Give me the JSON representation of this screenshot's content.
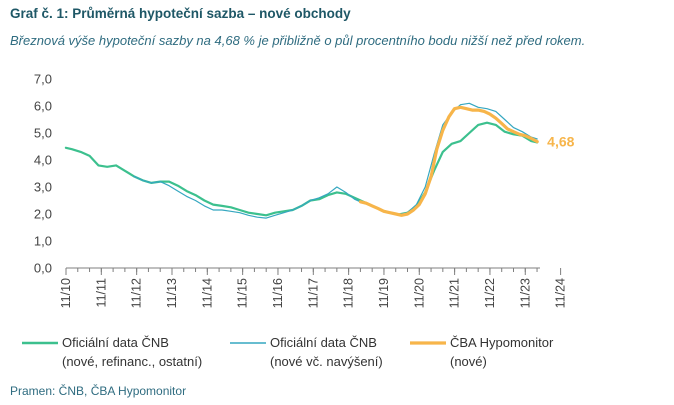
{
  "header": {
    "title": "Graf č. 1: Průměrná hypoteční sazba – nové obchody",
    "subtitle": "Březnová výše hypoteční sazby na 4,68 % je přibližně o půl procentního bodu nižší než před rokem."
  },
  "source": "Pramen: ČNB, ČBA Hypomonitor",
  "colors": {
    "cnb_refinanc": "#3cc08e",
    "cnb_navyseni": "#35a7c0",
    "cba": "#f7b54a",
    "axis": "#7f7f7f"
  },
  "chart_data": {
    "type": "line",
    "title": "Graf č. 1: Průměrná hypoteční sazba – nové obchody",
    "xlabel": "",
    "ylabel": "",
    "ylim": [
      0,
      7
    ],
    "xlim": [
      2010.833,
      2024.25
    ],
    "yticks": [
      "0,0",
      "1,0",
      "2,0",
      "3,0",
      "4,0",
      "5,0",
      "6,0",
      "7,0"
    ],
    "xticks": [
      "11/10",
      "11/11",
      "11/12",
      "11/13",
      "11/14",
      "11/15",
      "11/16",
      "11/17",
      "11/18",
      "11/19",
      "11/20",
      "11/21",
      "11/22",
      "11/23",
      "11/24"
    ],
    "grid": false,
    "legend": "bottom",
    "annotation": "4,68",
    "series": [
      {
        "name": "Oficiální data ČNB\n(nové, refinanc., ostatní)",
        "x": [
          2010.83,
          2011.0,
          2011.25,
          2011.5,
          2011.75,
          2012.0,
          2012.25,
          2012.5,
          2012.75,
          2013.0,
          2013.25,
          2013.5,
          2013.75,
          2014.0,
          2014.25,
          2014.5,
          2014.75,
          2015.0,
          2015.25,
          2015.5,
          2015.75,
          2016.0,
          2016.25,
          2016.5,
          2016.75,
          2017.0,
          2017.25,
          2017.5,
          2017.75,
          2018.0,
          2018.25,
          2018.5,
          2018.75,
          2019.0,
          2019.25,
          2019.5,
          2019.75,
          2020.0,
          2020.25,
          2020.5,
          2020.75,
          2021.0,
          2021.25,
          2021.5,
          2021.75,
          2022.0,
          2022.25,
          2022.5,
          2022.75,
          2023.0,
          2023.25,
          2023.5,
          2023.75,
          2024.0,
          2024.17
        ],
        "values": [
          4.45,
          4.4,
          4.3,
          4.15,
          3.8,
          3.75,
          3.8,
          3.6,
          3.4,
          3.25,
          3.15,
          3.2,
          3.2,
          3.05,
          2.85,
          2.7,
          2.5,
          2.35,
          2.3,
          2.25,
          2.15,
          2.05,
          2.0,
          1.95,
          2.05,
          2.1,
          2.15,
          2.3,
          2.5,
          2.55,
          2.7,
          2.8,
          2.75,
          2.6,
          2.45,
          2.3,
          2.15,
          2.05,
          1.98,
          2.05,
          2.3,
          2.8,
          3.6,
          4.3,
          4.6,
          4.7,
          5.0,
          5.3,
          5.38,
          5.3,
          5.05,
          4.95,
          4.9,
          4.7,
          4.65
        ]
      },
      {
        "name": "Oficiální data ČNB\n(nové vč. navýšení)",
        "x": [
          2012.75,
          2013.0,
          2013.25,
          2013.5,
          2013.75,
          2014.0,
          2014.25,
          2014.5,
          2014.75,
          2015.0,
          2015.25,
          2015.5,
          2015.75,
          2016.0,
          2016.25,
          2016.5,
          2016.75,
          2017.0,
          2017.25,
          2017.5,
          2017.75,
          2018.0,
          2018.25,
          2018.5,
          2018.75,
          2019.0,
          2019.25,
          2019.5,
          2019.75,
          2020.0,
          2020.25,
          2020.5,
          2020.75,
          2021.0,
          2021.25,
          2021.5,
          2021.75,
          2022.0,
          2022.25,
          2022.5,
          2022.75,
          2023.0,
          2023.25,
          2023.5,
          2023.75,
          2024.0,
          2024.17
        ],
        "values": [
          3.4,
          3.25,
          3.15,
          3.2,
          3.05,
          2.85,
          2.65,
          2.5,
          2.3,
          2.15,
          2.15,
          2.1,
          2.05,
          1.95,
          1.88,
          1.85,
          1.95,
          2.05,
          2.15,
          2.3,
          2.5,
          2.6,
          2.75,
          3.0,
          2.8,
          2.55,
          2.4,
          2.3,
          2.15,
          2.05,
          1.98,
          2.05,
          2.35,
          3.0,
          4.2,
          5.3,
          5.75,
          6.05,
          6.1,
          5.95,
          5.9,
          5.8,
          5.5,
          5.2,
          5.05,
          4.85,
          4.78
        ]
      },
      {
        "name": "ČBA Hypomonitor\n(nové)",
        "x": [
          2019.17,
          2019.33,
          2019.5,
          2019.67,
          2019.83,
          2020.0,
          2020.17,
          2020.33,
          2020.5,
          2020.67,
          2020.83,
          2021.0,
          2021.17,
          2021.33,
          2021.5,
          2021.67,
          2021.83,
          2022.0,
          2022.17,
          2022.33,
          2022.5,
          2022.67,
          2022.83,
          2023.0,
          2023.17,
          2023.33,
          2023.5,
          2023.67,
          2023.83,
          2024.0,
          2024.17
        ],
        "values": [
          2.45,
          2.4,
          2.3,
          2.2,
          2.1,
          2.05,
          2.0,
          1.95,
          2.0,
          2.15,
          2.35,
          2.75,
          3.4,
          4.4,
          5.1,
          5.6,
          5.9,
          5.95,
          5.9,
          5.85,
          5.85,
          5.8,
          5.7,
          5.55,
          5.35,
          5.15,
          5.05,
          4.95,
          4.9,
          4.8,
          4.68
        ]
      }
    ]
  }
}
